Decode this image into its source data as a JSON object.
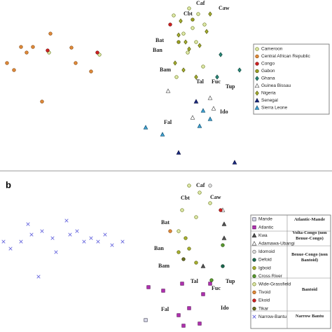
{
  "chart_data": [
    {
      "type": "scatter",
      "xlim": [
        0,
        355
      ],
      "ylim": [
        240,
        0
      ],
      "series": [
        {
          "name": "Cameroon",
          "color": "#dfe9a8",
          "edgecolor": "#6b7a20",
          "marker": "circle",
          "x": [
            270,
            283,
            292,
            275,
            262,
            280,
            268,
            290,
            252,
            142,
            70,
            248
          ],
          "values": [
            12,
            20,
            35,
            40,
            48,
            60,
            75,
            95,
            110,
            78,
            75,
            22
          ]
        },
        {
          "name": "Central African Republic",
          "color": "#e08a3a",
          "edgecolor": "#8a4a10",
          "marker": "circle",
          "x": [
            10,
            47,
            38,
            72,
            102,
            20,
            60,
            130,
            108,
            30
          ],
          "values": [
            90,
            67,
            75,
            48,
            68,
            100,
            145,
            102,
            90,
            67
          ]
        },
        {
          "name": "Congo",
          "color": "#d02020",
          "edgecolor": "#701010",
          "marker": "circle",
          "x": [
            243,
            139,
            68
          ],
          "values": [
            35,
            75,
            72
          ]
        },
        {
          "name": "Gabon",
          "color": "#9aa020",
          "edgecolor": "#505010",
          "marker": "circle",
          "x": [
            255,
            275
          ],
          "values": [
            60,
            28
          ]
        },
        {
          "name": "Ghana",
          "color": "#2a8a7a",
          "edgecolor": "#104a40",
          "marker": "diamond",
          "x": [
            315,
            310,
            342
          ],
          "values": [
            78,
            110,
            100
          ]
        },
        {
          "name": "Guinea Bissau",
          "color": "#ffffff",
          "edgecolor": "#555555",
          "marker": "triangle",
          "x": [
            240,
            305,
            275,
            300
          ],
          "values": [
            130,
            155,
            168,
            140
          ]
        },
        {
          "name": "Nigeria",
          "color": "#a8b030",
          "edgecolor": "#5a6010",
          "marker": "diamond",
          "x": [
            255,
            265,
            270,
            285,
            250,
            262,
            280,
            300,
            295,
            258
          ],
          "values": [
            50,
            60,
            70,
            65,
            90,
            100,
            110,
            20,
            45,
            30
          ]
        },
        {
          "name": "Senegal",
          "color": "#1a2a80",
          "edgecolor": "#0a1040",
          "marker": "triangle",
          "x": [
            255,
            335,
            280
          ],
          "values": [
            218,
            232,
            145
          ]
        },
        {
          "name": "Sierra Leone",
          "color": "#40a0d0",
          "edgecolor": "#105070",
          "marker": "triangle",
          "x": [
            208,
            232,
            290,
            285,
            300
          ],
          "values": [
            182,
            192,
            158,
            180,
            170
          ]
        }
      ],
      "annotations": [
        {
          "text": "Cbt",
          "x": 262,
          "y": 20
        },
        {
          "text": "Caf",
          "x": 280,
          "y": 5
        },
        {
          "text": "Caw",
          "x": 312,
          "y": 12
        },
        {
          "text": "Bat",
          "x": 222,
          "y": 58
        },
        {
          "text": "Ban",
          "x": 218,
          "y": 72
        },
        {
          "text": "Bam",
          "x": 228,
          "y": 100
        },
        {
          "text": "Tal",
          "x": 280,
          "y": 117
        },
        {
          "text": "Fuc",
          "x": 302,
          "y": 117
        },
        {
          "text": "Tup",
          "x": 322,
          "y": 124
        },
        {
          "text": "Ido",
          "x": 314,
          "y": 160
        },
        {
          "text": "Fal",
          "x": 234,
          "y": 175
        }
      ]
    },
    {
      "type": "scatter",
      "title": "b",
      "xlim": [
        0,
        355
      ],
      "ylim": [
        229,
        0
      ],
      "series": [
        {
          "name": "Mande",
          "color": "#d8d8e8",
          "edgecolor": "#555566",
          "marker": "square",
          "x": [
            208
          ],
          "values": [
            212
          ]
        },
        {
          "name": "Atlantic",
          "color": "#b030b0",
          "edgecolor": "#601060",
          "marker": "square",
          "x": [
            212,
            233,
            260,
            262,
            285,
            290,
            300,
            270,
            255
          ],
          "values": [
            165,
            170,
            160,
            220,
            217,
            175,
            160,
            195,
            205
          ]
        },
        {
          "name": "Kwa",
          "color": "#555555",
          "edgecolor": "#222222",
          "marker": "triangle",
          "x": [
            320,
            320,
            290
          ],
          "values": [
            75,
            95,
            135
          ]
        },
        {
          "name": "Adamawa-Ubangi",
          "color": "#ffffff",
          "edgecolor": "#555555",
          "marker": "triangle",
          "x": [
            318
          ],
          "values": [
            55
          ]
        },
        {
          "name": "Idomoid",
          "color": "#e0e0e0",
          "edgecolor": "#666666",
          "marker": "circle",
          "x": [
            300
          ],
          "values": [
            20
          ]
        },
        {
          "name": "Defoid",
          "color": "#1a6a50",
          "edgecolor": "#0a3020",
          "marker": "circle",
          "x": [
            318
          ],
          "values": [
            135
          ]
        },
        {
          "name": "Igboid",
          "color": "#a8b030",
          "edgecolor": "#5a6010",
          "marker": "circle",
          "x": [
            265,
            270,
            280,
            255
          ],
          "values": [
            95,
            110,
            130,
            115
          ]
        },
        {
          "name": "Cross River",
          "color": "#5a9a30",
          "edgecolor": "#2a5010",
          "marker": "circle",
          "x": [
            318,
            302
          ],
          "values": [
            105,
            155
          ]
        },
        {
          "name": "Wide-Grassfield",
          "color": "#dfe9a8",
          "edgecolor": "#6b7a20",
          "marker": "circle",
          "x": [
            270,
            285,
            300,
            260,
            280,
            255
          ],
          "values": [
            20,
            30,
            45,
            55,
            65,
            85
          ]
        },
        {
          "name": "Tivoid",
          "color": "#e08a3a",
          "edgecolor": "#8a4a10",
          "marker": "circle",
          "x": [
            243
          ],
          "values": [
            85
          ]
        },
        {
          "name": "Ekoid",
          "color": "#d02020",
          "edgecolor": "#701010",
          "marker": "circle",
          "x": [
            315
          ],
          "values": [
            55
          ]
        },
        {
          "name": "Tikar",
          "color": "#6a7020",
          "edgecolor": "#303008",
          "marker": "circle",
          "x": [
            262
          ],
          "values": [
            125
          ]
        },
        {
          "name": "Narrow-Bantu",
          "color": "#7070e0",
          "edgecolor": "#7070e0",
          "marker": "x",
          "x": [
            5,
            15,
            40,
            45,
            60,
            75,
            95,
            100,
            120,
            140,
            160,
            175,
            55,
            30,
            80,
            110,
            130,
            150
          ],
          "values": [
            100,
            110,
            75,
            90,
            85,
            95,
            70,
            90,
            100,
            100,
            105,
            100,
            150,
            100,
            115,
            85,
            95,
            90
          ]
        }
      ],
      "legend_groups": [
        "Atlantic-Mande",
        "Volta-Congo (non Benue-Congo)",
        "Benue-Congo (non Bantoid)",
        "Bantoid",
        "Narrow Bantu"
      ],
      "annotations": [
        {
          "text": "Caf",
          "x": 280,
          "y": 20
        },
        {
          "text": "Caw",
          "x": 300,
          "y": 37
        },
        {
          "text": "Cbt",
          "x": 258,
          "y": 38
        },
        {
          "text": "Bat",
          "x": 230,
          "y": 73
        },
        {
          "text": "Ban",
          "x": 220,
          "y": 110
        },
        {
          "text": "Bam",
          "x": 226,
          "y": 135
        },
        {
          "text": "Tal",
          "x": 272,
          "y": 157
        },
        {
          "text": "Fuc",
          "x": 302,
          "y": 167
        },
        {
          "text": "Tup",
          "x": 322,
          "y": 157
        },
        {
          "text": "Ido",
          "x": 315,
          "y": 195
        },
        {
          "text": "Fal",
          "x": 230,
          "y": 197
        }
      ]
    }
  ]
}
